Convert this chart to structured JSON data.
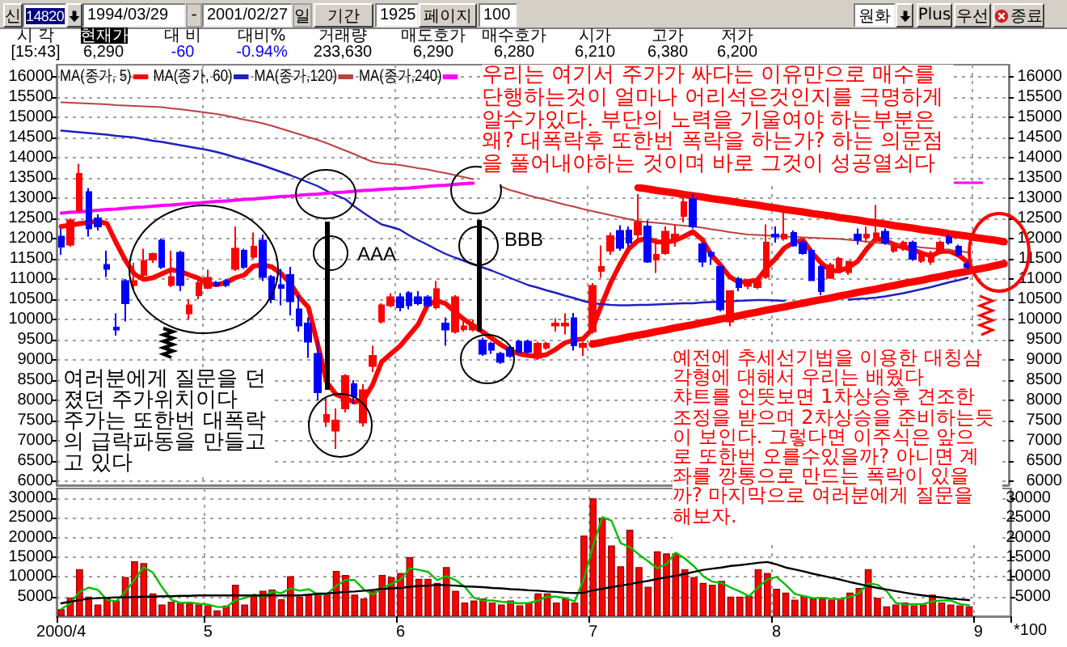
{
  "chart_data": [
    {
      "type": "candlestick",
      "categories": [
        "2000/4",
        null,
        null,
        null,
        null,
        null,
        null,
        null,
        null,
        null,
        null,
        null,
        null,
        null,
        null,
        null,
        "5",
        null,
        null,
        null,
        null,
        null,
        null,
        null,
        null,
        null,
        null,
        null,
        null,
        null,
        null,
        null,
        null,
        null,
        null,
        null,
        null,
        "6",
        null,
        null,
        null,
        null,
        null,
        null,
        null,
        null,
        null,
        null,
        null,
        null,
        null,
        null,
        null,
        null,
        null,
        null,
        null,
        null,
        "7",
        null,
        null,
        null,
        null,
        null,
        null,
        null,
        null,
        null,
        null,
        null,
        null,
        null,
        null,
        null,
        null,
        null,
        null,
        null,
        "8",
        null,
        null,
        null,
        null,
        null,
        null,
        null,
        null,
        null,
        null,
        null,
        null,
        null,
        null,
        null,
        null,
        null,
        null,
        null,
        null,
        null,
        "9",
        null,
        null,
        null
      ],
      "ohlc": [
        [
          12050,
          12250,
          11600,
          11800
        ],
        [
          11850,
          12500,
          11800,
          12450
        ],
        [
          12700,
          13850,
          12650,
          13600
        ],
        [
          13150,
          13250,
          12050,
          12250
        ],
        [
          12500,
          12600,
          12200,
          12300
        ],
        [
          11350,
          11700,
          11050,
          11250
        ],
        [
          9800,
          10150,
          9600,
          9750
        ],
        [
          10950,
          11000,
          9950,
          10400
        ],
        [
          10850,
          11400,
          10750,
          10950
        ],
        [
          11100,
          11750,
          11000,
          11450
        ],
        [
          11480,
          11650,
          11400,
          11620
        ],
        [
          11950,
          12000,
          11250,
          11300
        ],
        [
          10850,
          11700,
          10800,
          11050
        ],
        [
          11650,
          11700,
          10700,
          10850
        ],
        [
          10150,
          10500,
          10000,
          10350
        ],
        [
          10600,
          11000,
          10500,
          10900
        ],
        [
          10780,
          11230,
          10750,
          11030
        ],
        [
          10900,
          10950,
          10800,
          10850
        ],
        [
          10950,
          11000,
          10800,
          10850
        ],
        [
          11250,
          12300,
          11200,
          11750
        ],
        [
          11700,
          11750,
          11250,
          11300
        ],
        [
          11550,
          12150,
          11500,
          11800
        ],
        [
          11950,
          12100,
          10950,
          11050
        ],
        [
          11050,
          11100,
          10400,
          10500
        ],
        [
          10850,
          11250,
          10350,
          10780
        ],
        [
          11100,
          11300,
          10100,
          10450
        ],
        [
          10250,
          10600,
          9700,
          9850
        ],
        [
          9900,
          10050,
          9050,
          9450
        ],
        [
          9150,
          9500,
          8000,
          8200
        ],
        [
          7470,
          8080,
          7340,
          7640
        ],
        [
          7250,
          7800,
          6800,
          7500
        ],
        [
          7800,
          8650,
          7700,
          8600
        ],
        [
          8400,
          8500,
          7900,
          8100
        ],
        [
          7450,
          8400,
          7350,
          8250
        ],
        [
          8850,
          9350,
          8700,
          9100
        ],
        [
          9950,
          10400,
          9900,
          10350
        ],
        [
          10350,
          10650,
          10300,
          10550
        ],
        [
          10550,
          10650,
          10200,
          10300
        ],
        [
          10650,
          10700,
          10250,
          10350
        ],
        [
          10550,
          10700,
          10350,
          10400
        ],
        [
          10550,
          10600,
          10300,
          10350
        ],
        [
          10300,
          10950,
          10250,
          10750
        ],
        [
          9900,
          10050,
          9350,
          9750
        ],
        [
          9700,
          10600,
          9650,
          10550
        ],
        [
          9760,
          9950,
          9700,
          9830
        ],
        [
          9750,
          10000,
          9700,
          9850
        ],
        [
          9480,
          9550,
          9100,
          9150
        ],
        [
          9400,
          9450,
          9150,
          9250
        ],
        [
          9150,
          9200,
          8900,
          8950
        ],
        [
          9300,
          9350,
          9050,
          9100
        ],
        [
          9450,
          9500,
          9150,
          9200
        ],
        [
          9450,
          9500,
          9150,
          9200
        ],
        [
          9050,
          9450,
          9000,
          9400
        ],
        [
          9300,
          9450,
          9250,
          9400
        ],
        [
          9850,
          10030,
          9700,
          9900
        ],
        [
          9850,
          10150,
          9630,
          9900
        ],
        [
          10030,
          10160,
          9230,
          9360
        ],
        [
          9320,
          9450,
          9100,
          9400
        ],
        [
          9700,
          10900,
          9650,
          10830
        ],
        [
          11200,
          11830,
          11030,
          11300
        ],
        [
          11700,
          12150,
          11600,
          12060
        ],
        [
          12190,
          12330,
          11700,
          11770
        ],
        [
          12200,
          12300,
          11800,
          11900
        ],
        [
          12100,
          13100,
          12000,
          12400
        ],
        [
          12300,
          12450,
          11400,
          11430
        ],
        [
          11480,
          12000,
          11150,
          11600
        ],
        [
          11640,
          12300,
          11600,
          12170
        ],
        [
          12000,
          12350,
          11800,
          12100
        ],
        [
          12560,
          13000,
          12400,
          12900
        ],
        [
          12970,
          13100,
          12250,
          12300
        ],
        [
          11860,
          11900,
          11300,
          11430
        ],
        [
          11650,
          11700,
          11350,
          11570
        ],
        [
          11300,
          11350,
          10200,
          10250
        ],
        [
          9950,
          10700,
          9830,
          10700
        ],
        [
          11000,
          11050,
          10700,
          10800
        ],
        [
          10830,
          11000,
          10750,
          10950
        ],
        [
          10800,
          11000,
          10750,
          10950
        ],
        [
          11050,
          12350,
          11000,
          11900
        ],
        [
          12100,
          12300,
          11900,
          12050
        ],
        [
          12000,
          12700,
          11950,
          12100
        ],
        [
          12140,
          12200,
          11800,
          11830
        ],
        [
          11900,
          11950,
          11600,
          11640
        ],
        [
          11700,
          11750,
          10950,
          10970
        ],
        [
          11300,
          11350,
          10600,
          10700
        ],
        [
          11030,
          11400,
          11000,
          11340
        ],
        [
          11230,
          11550,
          11200,
          11500
        ],
        [
          11170,
          11450,
          11100,
          11430
        ],
        [
          12100,
          12250,
          11850,
          11970
        ],
        [
          12030,
          12300,
          11900,
          12100
        ],
        [
          12050,
          12830,
          12000,
          12130
        ],
        [
          12170,
          12250,
          11850,
          11900
        ],
        [
          11700,
          11900,
          11650,
          11830
        ],
        [
          11750,
          11950,
          11700,
          11900
        ],
        [
          11900,
          11950,
          11450,
          11500
        ],
        [
          11450,
          11700,
          11400,
          11650
        ],
        [
          11430,
          11700,
          11350,
          11630
        ],
        [
          11700,
          11950,
          11650,
          11900
        ],
        [
          12030,
          12100,
          11850,
          11900
        ],
        [
          11800,
          11850,
          11550,
          11600
        ],
        [
          11370,
          11450,
          11250,
          11300
        ],
        null,
        null,
        null,
        null
      ],
      "colors": [
        "#0000ff",
        "#ff0000",
        "#ff0000",
        "#0000ff",
        "#0000ff",
        "#0000ff",
        "#0000ff",
        "#0000ff",
        "#ff0000",
        "#ff0000",
        "#ff0000",
        "#0000ff",
        "#ff0000",
        "#0000ff",
        "#ff0000",
        "#ff0000",
        "#ff0000",
        "#0000ff",
        "#0000ff",
        "#ff0000",
        "#0000ff",
        "#ff0000",
        "#0000ff",
        "#0000ff",
        "#0000ff",
        "#0000ff",
        "#0000ff",
        "#0000ff",
        "#0000ff",
        "#ff0000",
        "#ff0000",
        "#ff0000",
        "#0000ff",
        "#ff0000",
        "#ff0000",
        "#ff0000",
        "#ff0000",
        "#0000ff",
        "#0000ff",
        "#0000ff",
        "#0000ff",
        "#ff0000",
        "#0000ff",
        "#ff0000",
        "#ff0000",
        "#ff0000",
        "#0000ff",
        "#0000ff",
        "#0000ff",
        "#0000ff",
        "#0000ff",
        "#0000ff",
        "#ff0000",
        "#ff0000",
        "#ff0000",
        "#ff0000",
        "#0000ff",
        "#ff0000",
        "#ff0000",
        "#ff0000",
        "#ff0000",
        "#0000ff",
        "#0000ff",
        "#ff0000",
        "#0000ff",
        "#ff0000",
        "#ff0000",
        "#ff0000",
        "#ff0000",
        "#0000ff",
        "#0000ff",
        "#0000ff",
        "#0000ff",
        "#ff0000",
        "#0000ff",
        "#ff0000",
        "#ff0000",
        "#ff0000",
        "#0000ff",
        "#ff0000",
        "#0000ff",
        "#0000ff",
        "#0000ff",
        "#0000ff",
        "#ff0000",
        "#ff0000",
        "#ff0000",
        "#0000ff",
        "#ff0000",
        "#ff0000",
        "#0000ff",
        "#ff0000",
        "#ff0000",
        "#0000ff",
        "#ff0000",
        "#ff0000",
        "#ff0000",
        "#0000ff",
        "#0000ff",
        "#0000ff",
        null,
        null,
        null,
        null
      ],
      "series": [
        {
          "name": "MA(종가, 5)",
          "type": "line",
          "color": "#ff0000",
          "values": [
            12300,
            12330,
            12370,
            12400,
            12430,
            12370,
            11900,
            11470,
            11120,
            10990,
            11030,
            11130,
            11230,
            11190,
            11100,
            11020,
            10880,
            10860,
            10910,
            11030,
            11100,
            11320,
            11350,
            11300,
            11140,
            10900,
            10550,
            10300,
            9400,
            8450,
            8150,
            8050,
            7960,
            8000,
            8380,
            8950,
            9150,
            9340,
            9610,
            9880,
            10350,
            10470,
            10390,
            10190,
            10000,
            9850,
            9700,
            9540,
            9380,
            9240,
            9150,
            9110,
            9090,
            9130,
            9260,
            9420,
            9490,
            9520,
            9760,
            10350,
            10900,
            11350,
            11750,
            11950,
            12010,
            11920,
            11910,
            11950,
            12050,
            12170,
            11980,
            11600,
            11350,
            11060,
            10920,
            10940,
            10970,
            11260,
            11500,
            11770,
            11900,
            11970,
            11650,
            11400,
            11210,
            11200,
            11290,
            11440,
            11750,
            12000,
            11950,
            11850,
            11790,
            11730,
            11640,
            11570,
            11680,
            11690,
            11590,
            11420,
            null,
            null,
            null,
            null
          ]
        },
        {
          "name": "MA(종가, 60)",
          "type": "line",
          "color": "#2020c0",
          "values": [
            14670,
            14650,
            14630,
            14610,
            14590,
            14570,
            14540,
            14520,
            14500,
            14460,
            14420,
            14390,
            14350,
            14310,
            14270,
            14230,
            14190,
            14140,
            14080,
            14010,
            13950,
            13880,
            13810,
            13730,
            13650,
            13570,
            13480,
            13390,
            13300,
            13180,
            13070,
            12980,
            12800,
            12640,
            12490,
            12350,
            12290,
            12220,
            12080,
            11960,
            11850,
            11730,
            11620,
            11530,
            11450,
            11370,
            11290,
            11210,
            11120,
            11030,
            10940,
            10850,
            10790,
            10720,
            10660,
            10590,
            10530,
            10460,
            10400,
            10380,
            10360,
            10350,
            10350,
            10360,
            10360,
            10370,
            10380,
            10390,
            10400,
            10400,
            10420,
            10430,
            10440,
            10450,
            10460,
            10470,
            10480,
            10480,
            10470,
            10460,
            null,
            null,
            null,
            null,
            null,
            null,
            10490,
            10510,
            10520,
            10540,
            10570,
            10610,
            10650,
            10700,
            10750,
            10800,
            10860,
            10920,
            10970,
            11030,
            null,
            null,
            null,
            null
          ]
        },
        {
          "name": "MA(종가,120)",
          "type": "line",
          "color": "#c04040",
          "values": [
            15370,
            15360,
            15350,
            15340,
            15330,
            15320,
            15300,
            15290,
            15280,
            15270,
            15260,
            15250,
            15220,
            15200,
            15170,
            15140,
            15110,
            15080,
            15040,
            14990,
            14940,
            14900,
            14850,
            14790,
            14720,
            14650,
            14580,
            14510,
            14440,
            14360,
            14270,
            14180,
            14090,
            13990,
            13900,
            13860,
            13840,
            13820,
            13780,
            13740,
            13710,
            13660,
            13620,
            13570,
            13520,
            13470,
            null,
            null,
            13290,
            13200,
            13140,
            13070,
            13010,
            12960,
            12900,
            12840,
            12790,
            12730,
            12680,
            12630,
            12580,
            12530,
            12480,
            12430,
            12410,
            12390,
            12370,
            12340,
            12320,
            12300,
            12270,
            12230,
            12200,
            12160,
            12130,
            12100,
            12090,
            12080,
            12060,
            12050,
            12040,
            12030,
            12020,
            12010,
            12000,
            11990,
            11970,
            11950,
            11920,
            11900,
            11880,
            11850,
            11830,
            11810,
            11780,
            11760,
            11740,
            11720,
            11690,
            11660,
            null,
            null,
            null,
            null
          ]
        },
        {
          "name": "MA(종가,240)",
          "type": "line",
          "color": "#ff00ff",
          "values": [
            12630,
            12650,
            12660,
            12680,
            12700,
            12720,
            12730,
            12750,
            12770,
            12780,
            12800,
            12820,
            12830,
            12850,
            12870,
            12880,
            12900,
            12920,
            12930,
            12950,
            12970,
            12980,
            13000,
            13020,
            13040,
            13050,
            13070,
            13090,
            13100,
            13120,
            13140,
            13150,
            13170,
            13190,
            13200,
            13220,
            13230,
            13240,
            13250,
            13270,
            13290,
            13310,
            13320,
            13340,
            13360,
            13370,
            null,
            null,
            null,
            null,
            null,
            null,
            null,
            null,
            null,
            null,
            null,
            null,
            null,
            null,
            null,
            null,
            null,
            null,
            null,
            null,
            null,
            null,
            null,
            null,
            null,
            null,
            null,
            null,
            null,
            null,
            null,
            null,
            null,
            null,
            null,
            null,
            null,
            null,
            null,
            null,
            null,
            null,
            null,
            null,
            null,
            null,
            null,
            null,
            null,
            null,
            null,
            null,
            null,
            null,
            null,
            null,
            null,
            null
          ]
        },
        {
          "type": "line",
          "color": "#ff0000",
          "values": [
            null,
            null,
            null,
            null,
            null,
            null,
            null,
            null,
            null,
            null,
            null,
            null,
            null,
            null,
            null,
            null,
            null,
            null,
            null,
            null,
            null,
            null,
            null,
            null,
            null,
            null,
            null,
            null,
            null,
            null,
            null,
            null,
            null,
            null,
            null,
            null,
            null,
            null,
            null,
            null,
            null,
            null,
            null,
            null,
            null,
            null,
            null,
            null,
            null,
            null,
            null,
            null,
            null,
            null,
            null,
            null,
            null,
            null,
            null,
            null,
            null,
            null,
            null,
            13260,
            13230,
            13190,
            13160,
            13130,
            13090,
            13060,
            13030,
            12990,
            12960,
            12930,
            12890,
            12860,
            12830,
            12790,
            12760,
            12720,
            12690,
            12660,
            12620,
            12590,
            12560,
            12520,
            12490,
            12460,
            12420,
            12390,
            12360,
            12320,
            12290,
            12260,
            12220,
            12190,
            12160,
            12120,
            12090,
            12060,
            12020,
            11990,
            11960,
            11920
          ]
        },
        {
          "type": "line",
          "color": "#ff0000",
          "values": [
            null,
            null,
            null,
            null,
            null,
            null,
            null,
            null,
            null,
            null,
            null,
            null,
            null,
            null,
            null,
            null,
            null,
            null,
            null,
            null,
            null,
            null,
            null,
            null,
            null,
            null,
            null,
            null,
            null,
            null,
            null,
            null,
            null,
            null,
            null,
            null,
            null,
            null,
            null,
            null,
            null,
            null,
            null,
            null,
            null,
            null,
            null,
            null,
            null,
            null,
            null,
            null,
            null,
            null,
            null,
            null,
            null,
            null,
            9390,
            9430,
            9480,
            9520,
            9570,
            9610,
            9650,
            9700,
            9740,
            9790,
            9830,
            9870,
            9920,
            9960,
            10010,
            10050,
            10090,
            10140,
            10180,
            10230,
            10270,
            10310,
            10360,
            10400,
            10450,
            10490,
            10530,
            10580,
            10620,
            10670,
            10710,
            10750,
            10800,
            10840,
            10890,
            10930,
            10970,
            11020,
            11060,
            11110,
            11150,
            11190,
            11240,
            11280,
            11330,
            11380
          ]
        }
      ],
      "ylim": [
        5900,
        16300
      ],
      "yticks": [
        6000,
        6500,
        7000,
        7500,
        8000,
        8500,
        9000,
        9500,
        10000,
        10500,
        11000,
        11500,
        12000,
        12500,
        13000,
        13500,
        14000,
        14500,
        15000,
        15500,
        16000
      ],
      "y2lim": [
        5900,
        16300
      ],
      "y2ticks": [
        6000,
        6500,
        7000,
        7500,
        8000,
        8500,
        9000,
        9500,
        10000,
        10500,
        11000,
        11500,
        12000,
        12500,
        13000,
        13500,
        14000,
        14500,
        15000,
        15500,
        16000
      ],
      "grid": true,
      "legend": "top left",
      "marker": "none",
      "tick_labels": "y",
      "annotations": [
        "신",
        "14820",
        "1994/03/29",
        "-",
        "2001/02/27",
        "일",
        "기간",
        "1925",
        "페이지",
        "100",
        "원화",
        "Plus",
        "우선",
        "종료",
        "시 각",
        "현재가",
        "대 비",
        "대비%",
        "거래량",
        "매도호가",
        "매수호가",
        "시가",
        "고가",
        "저가",
        "[15:43]",
        "6,290",
        "-60",
        "-0.94%",
        "233,630",
        "6,290",
        "6,280",
        "6,210",
        "6,380",
        "6,200",
        "우리는 여기서 주가가 싸다는 이유만으로 매수를\n단행하는것이 얼마나 어리석은것인지를 극명하게\n알수가있다. 부단의 노력을 기울여야 하는부분은\n왜? 대폭락후 또한번 폭락을 하는가? 하는 의문점\n을 풀어내야하는 것이며 바로 그것이 성공열쇠다",
        "여러분에게 질문을 던\n졌던 주가위치이다\n주가는 또한번 대폭락\n의 급락파동을 만들고\n고 있다",
        "예전에 추세선기법을 이용한 대칭삼\n각형에 대해서 우리는 배웠다\n챠트를 언뜻보면 1차상승후 견조한\n조정을 받으며 2차상승을 준비하는듯\n이 보인다. 그렇다면 이주식은 앞으\n로 또한번 오를수있을까? 아니면 계\n좌를 깡통으로 만드는 폭락이 있을\n까? 마지막으로 여러분에게 질문을\n해보자.",
        "AAA",
        "BBB"
      ]
    },
    {
      "type": "bar",
      "categories": [
        "2000/4",
        null,
        null,
        null,
        null,
        null,
        null,
        null,
        null,
        null,
        null,
        null,
        null,
        null,
        null,
        null,
        "5",
        null,
        null,
        null,
        null,
        null,
        null,
        null,
        null,
        null,
        null,
        null,
        null,
        null,
        null,
        null,
        null,
        null,
        null,
        null,
        null,
        "6",
        null,
        null,
        null,
        null,
        null,
        null,
        null,
        null,
        null,
        null,
        null,
        null,
        null,
        null,
        null,
        null,
        null,
        null,
        null,
        null,
        "7",
        null,
        null,
        null,
        null,
        null,
        null,
        null,
        null,
        null,
        null,
        null,
        null,
        null,
        null,
        null,
        null,
        null,
        null,
        null,
        "8",
        null,
        null,
        null,
        null,
        null,
        null,
        null,
        null,
        null,
        null,
        null,
        null,
        null,
        null,
        null,
        null,
        null,
        null,
        null,
        null,
        null,
        "9",
        null,
        null,
        null
      ],
      "series": [
        {
          "color": "#ff0000",
          "values": [
            1800,
            4800,
            12000,
            5000,
            3000,
            4500,
            4000,
            10000,
            14000,
            13500,
            5800,
            3000,
            3700,
            3400,
            3300,
            3000,
            2800,
            1500,
            2700,
            8000,
            3000,
            5500,
            6500,
            6800,
            4300,
            10200,
            5000,
            5500,
            6000,
            5500,
            11500,
            10500,
            5500,
            4500,
            6500,
            10500,
            10000,
            11000,
            15000,
            9500,
            9500,
            8500,
            12500,
            6500,
            3500,
            4000,
            4500,
            3500,
            3000,
            4000,
            2800,
            3500,
            5800,
            5800,
            3500,
            4500,
            3500,
            20500,
            30000,
            25000,
            18000,
            12700,
            22000,
            12500,
            7500,
            16500,
            16000,
            16000,
            12000,
            10000,
            8500,
            8000,
            9000,
            5000,
            5000,
            5200,
            12000,
            11000,
            7000,
            6000,
            4200,
            5200,
            4500,
            4500,
            4200,
            4500,
            6000,
            7200,
            12000,
            4700,
            2500,
            3000,
            3500,
            2800,
            3000,
            5500,
            3500,
            3000,
            2800,
            2500,
            null,
            null,
            null,
            null
          ]
        },
        {
          "type": "line",
          "color": "#00c000",
          "values": [
            1800,
            3300,
            6200,
            7300,
            6700,
            4200,
            3800,
            6200,
            9300,
            12500,
            11100,
            7400,
            4200,
            3400,
            3500,
            3200,
            3000,
            2400,
            2300,
            4100,
            4600,
            5500,
            5000,
            6300,
            5900,
            7100,
            6500,
            6900,
            5500,
            5700,
            7700,
            9200,
            9200,
            6800,
            5500,
            7200,
            8200,
            9300,
            12200,
            11800,
            11300,
            9200,
            10200,
            9200,
            7500,
            4700,
            4000,
            4000,
            3700,
            3500,
            3300,
            3400,
            4000,
            5000,
            5000,
            4600,
            3800,
            9500,
            18000,
            25200,
            24300,
            18600,
            17600,
            15700,
            14000,
            12200,
            13300,
            16200,
            14700,
            12700,
            10200,
            8800,
            8500,
            7300,
            6300,
            5100,
            7400,
            9400,
            10000,
            8000,
            5700,
            5100,
            4600,
            4700,
            4400,
            4400,
            4900,
            5900,
            8400,
            8000,
            6400,
            3400,
            3000,
            3100,
            3100,
            3800,
            4000,
            4000,
            3100,
            2800,
            null,
            null,
            null,
            null
          ]
        },
        {
          "type": "line",
          "color": "#000000",
          "values": [
            3300,
            3700,
            4100,
            4500,
            4600,
            4700,
            4800,
            4800,
            4900,
            5000,
            5000,
            5100,
            5100,
            5200,
            5200,
            5300,
            5300,
            5300,
            5300,
            5300,
            5300,
            5300,
            5300,
            5300,
            5300,
            5300,
            5300,
            5500,
            5700,
            5800,
            6000,
            6200,
            6300,
            6500,
            6700,
            7000,
            7100,
            7200,
            7500,
            7700,
            7800,
            8000,
            7900,
            7800,
            7600,
            7500,
            7400,
            7200,
            7100,
            6900,
            6800,
            6600,
            6500,
            6300,
            6200,
            6000,
            5900,
            6000,
            6600,
            7000,
            7400,
            7800,
            8200,
            8600,
            9000,
            9500,
            9900,
            10300,
            10800,
            11300,
            11800,
            12100,
            12400,
            12800,
            13000,
            13300,
            13600,
            13800,
            13200,
            12400,
            11900,
            11400,
            10800,
            10300,
            9800,
            9300,
            8700,
            8200,
            7700,
            7200,
            6800,
            6400,
            6000,
            5600,
            5300,
            5000,
            4800,
            4500,
            4300,
            4100,
            null,
            null,
            null,
            null
          ]
        }
      ],
      "ylim": [
        0,
        32500
      ],
      "yticks": [
        5000,
        10000,
        15000,
        20000,
        25000,
        30000
      ],
      "y2lim": [
        0,
        32500
      ],
      "y2ticks": [
        5000,
        10000,
        15000,
        20000,
        25000,
        30000
      ],
      "y2label": "*100",
      "grid": true,
      "marker": "none"
    }
  ]
}
